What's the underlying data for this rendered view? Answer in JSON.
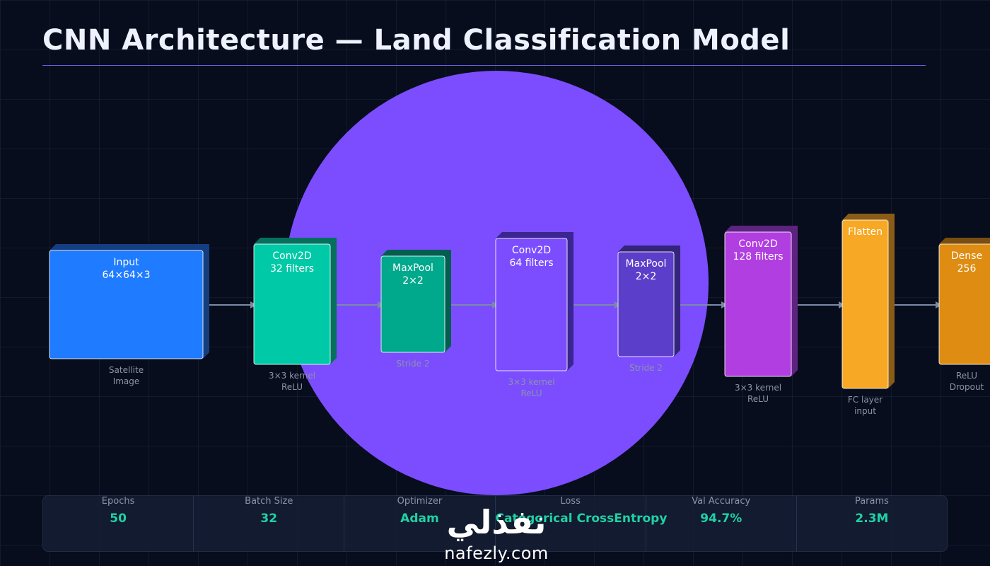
{
  "title": "CNN Architecture — Land Classification Model",
  "colors": {
    "background": "#070d1c",
    "accent_circle": "#7b4dff",
    "arrow": "#7a8aa6",
    "stat_value": "#1fd1a5"
  },
  "layers": [
    {
      "name": "Input",
      "detail": "64×64×3",
      "notes": [
        "Satellite",
        "Image"
      ],
      "color": "#1f7bff",
      "depth_color": "#153e80",
      "text_color": "#ffffff"
    },
    {
      "name": "Conv2D",
      "detail": "32 filters",
      "notes": [
        "3×3 kernel",
        "ReLU"
      ],
      "color": "#00c9a7",
      "depth_color": "#06705f",
      "text_color": "#ffffff"
    },
    {
      "name": "MaxPool",
      "detail": "2×2",
      "notes": [
        "Stride 2"
      ],
      "color": "#00a88c",
      "depth_color": "#045e50",
      "text_color": "#ffffff"
    },
    {
      "name": "Conv2D",
      "detail": "64 filters",
      "notes": [
        "3×3 kernel",
        "ReLU"
      ],
      "color": "#7b4dff",
      "depth_color": "#3b2590",
      "text_color": "#ffffff"
    },
    {
      "name": "MaxPool",
      "detail": "2×2",
      "notes": [
        "Stride 2"
      ],
      "color": "#5b3ec9",
      "depth_color": "#34247a",
      "text_color": "#ffffff"
    },
    {
      "name": "Conv2D",
      "detail": "128 filters",
      "notes": [
        "3×3 kernel",
        "ReLU"
      ],
      "color": "#b13ee0",
      "depth_color": "#5e2380",
      "text_color": "#ffffff"
    },
    {
      "name": "Flatten",
      "detail": "",
      "notes": [
        "FC layer",
        "input"
      ],
      "color": "#f7a824",
      "depth_color": "#8a5c16",
      "text_color": "#ffffff"
    },
    {
      "name": "Dense",
      "detail": "256",
      "notes": [
        "ReLU",
        "Dropout"
      ],
      "color": "#de8c12",
      "depth_color": "#7a4e10",
      "text_color": "#ffffff"
    }
  ],
  "stats": [
    {
      "label": "Epochs",
      "value": "50"
    },
    {
      "label": "Batch Size",
      "value": "32"
    },
    {
      "label": "Optimizer",
      "value": "Adam"
    },
    {
      "label": "Loss",
      "value": "Categorical CrossEntropy"
    },
    {
      "label": "Val Accuracy",
      "value": "94.7%"
    },
    {
      "label": "Params",
      "value": "2.3M"
    }
  ],
  "watermark": {
    "arabic": "نفذلي",
    "latin": "nafezly.com"
  }
}
